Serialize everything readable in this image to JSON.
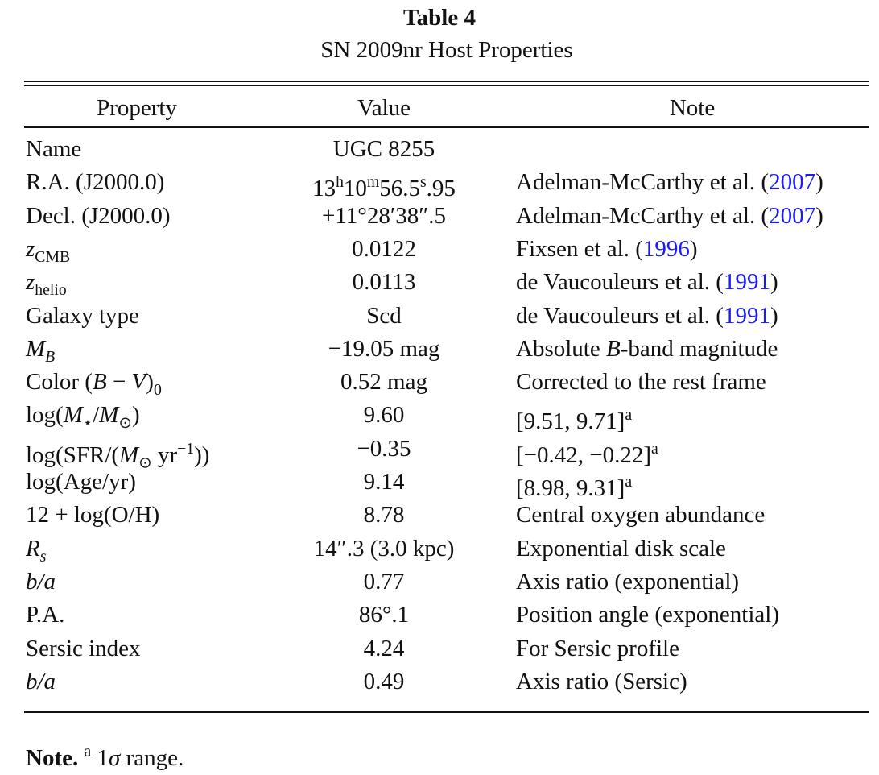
{
  "header": {
    "title": "Table 4",
    "subtitle": "SN 2009nr Host Properties"
  },
  "table": {
    "columns": [
      "Property",
      "Value",
      "Note"
    ],
    "rows": [
      [
        "Name",
        "UGC 8255",
        null
      ],
      [
        "R.A. (J2000.0)",
        [
          {
            "text": "13"
          },
          {
            "text": "h",
            "style": "sup"
          },
          {
            "text": "10"
          },
          {
            "text": "m",
            "style": "sup"
          },
          {
            "text": "56.5"
          },
          {
            "text": "s",
            "style": "sup"
          },
          {
            "text": ".95"
          }
        ],
        [
          {
            "text": "Adelman-McCarthy et al. ("
          },
          {
            "text": "2007",
            "style": "link"
          },
          {
            "text": ")"
          }
        ]
      ],
      [
        "Decl. (J2000.0)",
        "+11°28′38″.5",
        [
          {
            "text": "Adelman-McCarthy et al. ("
          },
          {
            "text": "2007",
            "style": "link"
          },
          {
            "text": ")"
          }
        ]
      ],
      [
        [
          {
            "text": "z",
            "style": "italic"
          },
          {
            "text": "CMB",
            "style": "sub"
          }
        ],
        "0.0122",
        [
          {
            "text": "Fixsen et al. ("
          },
          {
            "text": "1996",
            "style": "link"
          },
          {
            "text": ")"
          }
        ]
      ],
      [
        [
          {
            "text": "z",
            "style": "italic"
          },
          {
            "text": "helio",
            "style": "sub"
          }
        ],
        "0.0113",
        [
          {
            "text": "de Vaucouleurs et al. ("
          },
          {
            "text": "1991",
            "style": "link"
          },
          {
            "text": ")"
          }
        ]
      ],
      [
        "Galaxy type",
        "Scd",
        [
          {
            "text": "de Vaucouleurs et al. ("
          },
          {
            "text": "1991",
            "style": "link"
          },
          {
            "text": ")"
          }
        ]
      ],
      [
        [
          {
            "text": "M",
            "style": "italic"
          },
          {
            "text": "B",
            "style": "sub-italic"
          }
        ],
        "−19.05 mag",
        [
          {
            "text": "Absolute "
          },
          {
            "text": "B",
            "style": "italic"
          },
          {
            "text": "-band magnitude"
          }
        ]
      ],
      [
        [
          {
            "text": "Color ("
          },
          {
            "text": "B",
            "style": "italic"
          },
          {
            "text": " − "
          },
          {
            "text": "V",
            "style": "italic"
          },
          {
            "text": ")"
          },
          {
            "text": "0",
            "style": "sub"
          }
        ],
        "0.52 mag",
        "Corrected to the rest frame"
      ],
      [
        [
          {
            "text": "log("
          },
          {
            "text": "M",
            "style": "italic"
          },
          {
            "text": "⋆",
            "style": "sub"
          },
          {
            "text": "/"
          },
          {
            "text": "M",
            "style": "italic"
          },
          {
            "text": "⊙",
            "style": "sub"
          },
          {
            "text": ")"
          }
        ],
        "9.60",
        [
          {
            "text": "[9.51, 9.71]"
          },
          {
            "text": "a",
            "style": "sup"
          }
        ]
      ],
      [
        [
          {
            "text": "log(SFR/("
          },
          {
            "text": "M",
            "style": "italic"
          },
          {
            "text": "⊙",
            "style": "sub"
          },
          {
            "text": " yr"
          },
          {
            "text": "−1",
            "style": "sup"
          },
          {
            "text": "))"
          }
        ],
        "−0.35",
        [
          {
            "text": "[−0.42, −0.22]"
          },
          {
            "text": "a",
            "style": "sup"
          }
        ]
      ],
      [
        "log(Age/yr)",
        "9.14",
        [
          {
            "text": "[8.98, 9.31]"
          },
          {
            "text": "a",
            "style": "sup"
          }
        ]
      ],
      [
        "12 + log(O/H)",
        "8.78",
        "Central oxygen abundance"
      ],
      [
        [
          {
            "text": "R",
            "style": "italic"
          },
          {
            "text": "s",
            "style": "sub-italic"
          }
        ],
        "14″.3 (3.0 kpc)",
        "Exponential disk scale"
      ],
      [
        [
          {
            "text": "b/a",
            "style": "italic"
          }
        ],
        "0.77",
        "Axis ratio (exponential)"
      ],
      [
        "P.A.",
        "86°.1",
        "Position angle (exponential)"
      ],
      [
        "Sersic index",
        "4.24",
        "For Sersic profile"
      ],
      [
        [
          {
            "text": "b/a",
            "style": "italic"
          }
        ],
        "0.49",
        "Axis ratio (Sersic)"
      ]
    ]
  },
  "footnote": [
    {
      "text": "Note.",
      "style": "bold"
    },
    {
      "text": " "
    },
    {
      "text": "a",
      "style": "sup"
    },
    {
      "text": " 1"
    },
    {
      "text": "σ",
      "style": "italic"
    },
    {
      "text": " range."
    }
  ]
}
